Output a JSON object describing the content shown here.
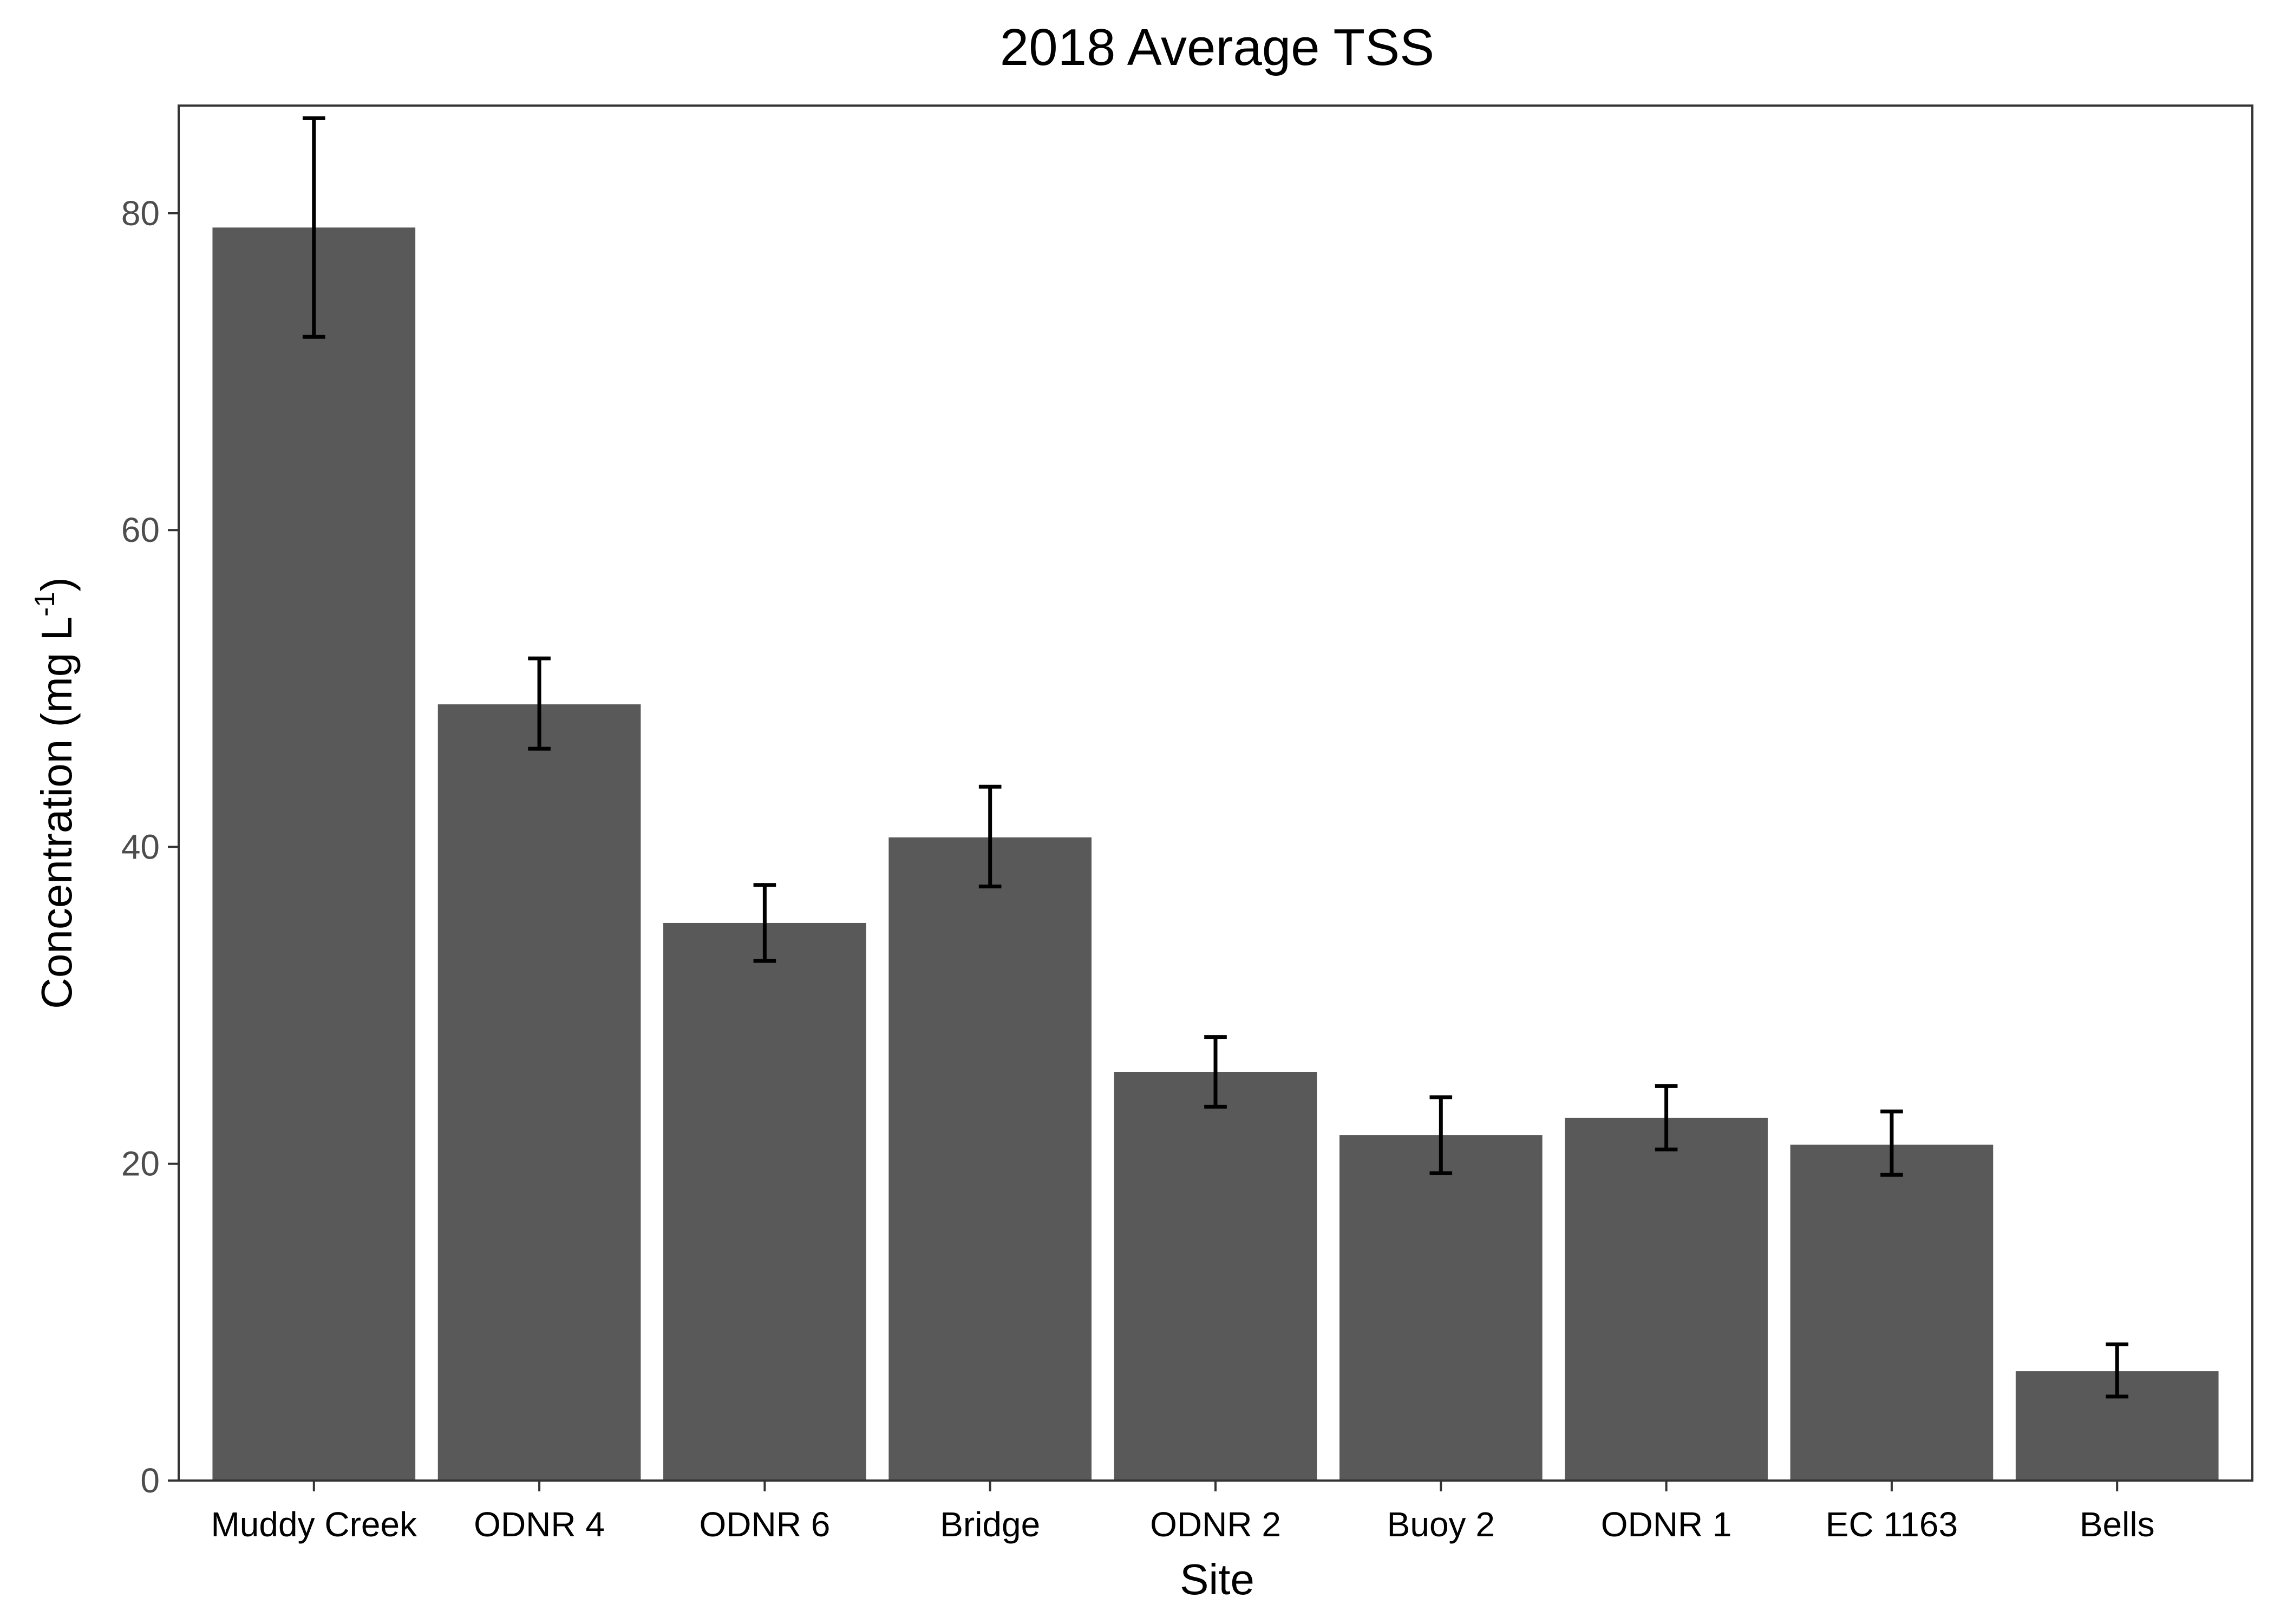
{
  "chart_data": {
    "type": "bar",
    "title": "2018 Average TSS",
    "xlabel": "Site",
    "ylabel": {
      "main": "Concentration (mg L",
      "superscript": "-1",
      "close": ")"
    },
    "categories": [
      "Muddy Creek",
      "ODNR 4",
      "ODNR 6",
      "Bridge",
      "ODNR 2",
      "Buoy 2",
      "ODNR 1",
      "EC 1163",
      "Bells"
    ],
    "values": [
      79.1,
      49.0,
      35.2,
      40.6,
      25.8,
      21.8,
      22.9,
      21.2,
      6.9
    ],
    "error_low": [
      72.2,
      46.2,
      32.8,
      37.5,
      23.6,
      19.4,
      20.9,
      19.3,
      5.3
    ],
    "error_high": [
      86.0,
      51.9,
      37.6,
      43.8,
      28.0,
      24.2,
      24.9,
      23.3,
      8.6
    ],
    "ylim": [
      0,
      86.8
    ],
    "yticks": [
      0,
      20,
      40,
      60,
      80
    ],
    "grid": false,
    "bar_color": "#595959",
    "error_color": "#000000",
    "panel_border_color": "#333333"
  }
}
